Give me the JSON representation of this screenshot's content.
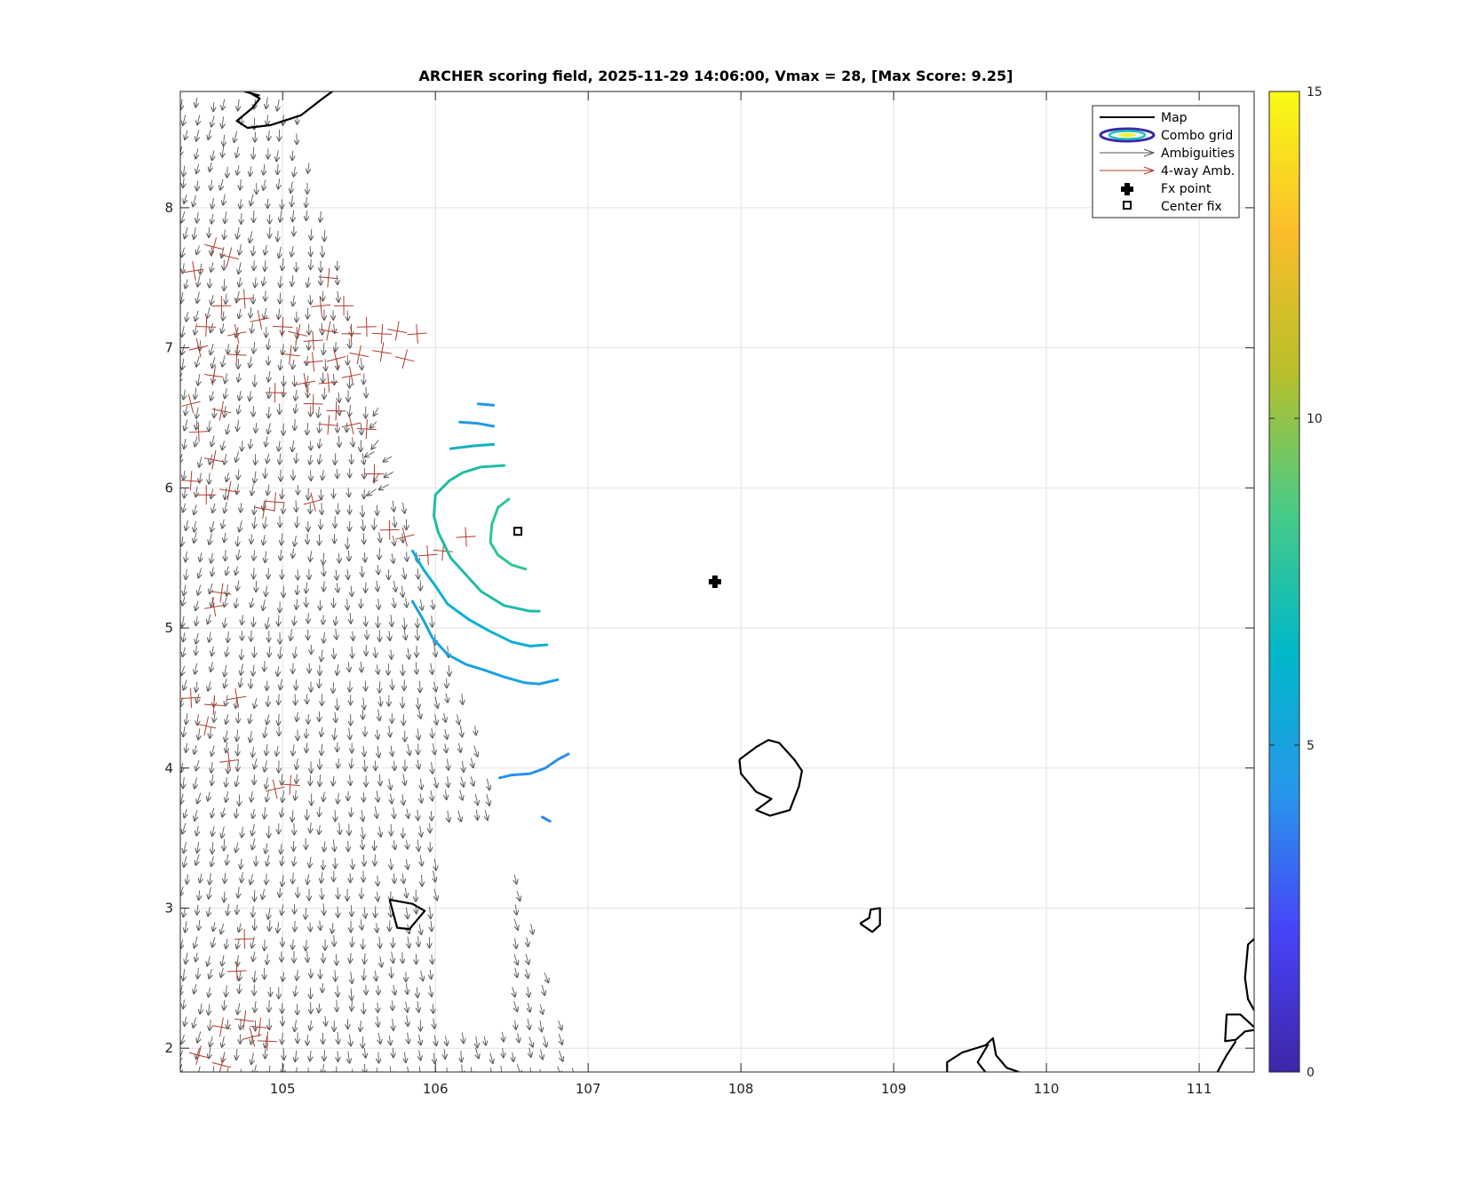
{
  "title": "ARCHER scoring field, 2025-11-29 14:06:00, Vmax = 28, [Max Score: 9.25]",
  "x_ticks": [
    "105",
    "106",
    "107",
    "108",
    "109",
    "110",
    "111"
  ],
  "y_ticks": [
    "2",
    "3",
    "4",
    "5",
    "6",
    "7",
    "8"
  ],
  "colorbar": {
    "ticks": [
      "0",
      "5",
      "10",
      "15"
    ],
    "min": 0,
    "max": 15,
    "colormap": [
      "#3e26a8",
      "#4743f8",
      "#2797eb",
      "#00b8c9",
      "#48cb86",
      "#b8c02a",
      "#fbbd2b",
      "#f9fb15"
    ]
  },
  "legend": {
    "items": [
      "Map",
      "Combo grid",
      "Ambiguities",
      "4-way Amb.",
      "Fx point",
      "Center fix"
    ]
  },
  "colors": {
    "map": "#000000",
    "ambiguities": "#555555",
    "fourway": "#b03a2e"
  },
  "chart_data": {
    "type": "map",
    "title": "ARCHER scoring field, 2025-11-29 14:06:00, Vmax = 28, [Max Score: 9.25]",
    "xlim": [
      104.33,
      111.36
    ],
    "ylim": [
      1.83,
      8.83
    ],
    "x_ticks": [
      105,
      106,
      107,
      108,
      109,
      110,
      111
    ],
    "y_ticks": [
      2,
      3,
      4,
      5,
      6,
      7,
      8
    ],
    "grid": true,
    "legend_position": "top-right",
    "fx_point": {
      "lon": 107.83,
      "lat": 5.33
    },
    "center_fix": {
      "lon": 106.54,
      "lat": 5.69
    },
    "contours": [
      {
        "level": 8.2,
        "color": "#2fc59a",
        "points": [
          [
            106.48,
            5.92
          ],
          [
            106.41,
            5.86
          ],
          [
            106.37,
            5.74
          ],
          [
            106.36,
            5.61
          ],
          [
            106.41,
            5.52
          ],
          [
            106.5,
            5.45
          ],
          [
            106.59,
            5.42
          ]
        ]
      },
      {
        "level": 7.8,
        "color": "#20bba4",
        "points": [
          [
            106.45,
            6.16
          ],
          [
            106.3,
            6.15
          ],
          [
            106.18,
            6.11
          ],
          [
            106.09,
            6.05
          ],
          [
            106.0,
            5.95
          ],
          [
            105.99,
            5.8
          ],
          [
            106.02,
            5.68
          ],
          [
            106.1,
            5.5
          ],
          [
            106.2,
            5.38
          ],
          [
            106.3,
            5.26
          ],
          [
            106.45,
            5.16
          ],
          [
            106.62,
            5.12
          ],
          [
            106.68,
            5.12
          ]
        ]
      },
      {
        "level": 7.2,
        "color": "#14afc5",
        "points": [
          [
            106.38,
            6.31
          ],
          [
            106.25,
            6.3
          ],
          [
            106.1,
            6.28
          ]
        ]
      },
      {
        "level": 6.8,
        "color": "#0eaed4",
        "points": [
          [
            105.85,
            5.55
          ],
          [
            105.92,
            5.42
          ],
          [
            106.0,
            5.3
          ],
          [
            106.08,
            5.17
          ],
          [
            106.22,
            5.06
          ],
          [
            106.35,
            4.98
          ],
          [
            106.5,
            4.9
          ],
          [
            106.62,
            4.87
          ],
          [
            106.73,
            4.88
          ]
        ]
      },
      {
        "level": 6.2,
        "color": "#1aa2e0",
        "points": [
          [
            105.85,
            5.19
          ],
          [
            105.92,
            5.06
          ],
          [
            105.98,
            4.93
          ],
          [
            106.08,
            4.81
          ],
          [
            106.2,
            4.74
          ],
          [
            106.32,
            4.7
          ],
          [
            106.45,
            4.65
          ],
          [
            106.58,
            4.61
          ],
          [
            106.68,
            4.6
          ],
          [
            106.8,
            4.63
          ]
        ]
      },
      {
        "level": 5.8,
        "color": "#1f98e6",
        "points": [
          [
            106.38,
            6.59
          ],
          [
            106.28,
            6.6
          ]
        ]
      },
      {
        "level": 5.6,
        "color": "#1f98e6",
        "points": [
          [
            106.38,
            6.44
          ],
          [
            106.28,
            6.46
          ],
          [
            106.16,
            6.47
          ]
        ]
      },
      {
        "level": 5.0,
        "color": "#2690e8",
        "points": [
          [
            106.42,
            3.93
          ],
          [
            106.5,
            3.95
          ],
          [
            106.62,
            3.96
          ],
          [
            106.72,
            4.0
          ],
          [
            106.8,
            4.06
          ],
          [
            106.87,
            4.1
          ]
        ]
      },
      {
        "level": 4.6,
        "color": "#2b87ea",
        "points": [
          [
            106.7,
            3.65
          ],
          [
            106.75,
            3.62
          ]
        ]
      }
    ],
    "map_features": [
      {
        "name": "coast-top",
        "points": [
          [
            104.77,
            8.83
          ],
          [
            104.85,
            8.78
          ],
          [
            104.8,
            8.71
          ],
          [
            104.7,
            8.62
          ],
          [
            104.77,
            8.57
          ],
          [
            104.92,
            8.59
          ],
          [
            105.12,
            8.66
          ],
          [
            105.25,
            8.77
          ],
          [
            105.35,
            8.85
          ]
        ]
      },
      {
        "name": "coast-top-2",
        "points": [
          [
            104.75,
            8.83
          ],
          [
            104.85,
            8.8
          ]
        ]
      },
      {
        "name": "island-105.8",
        "points": [
          [
            105.7,
            3.06
          ],
          [
            105.75,
            2.86
          ],
          [
            105.83,
            2.85
          ],
          [
            105.93,
            2.98
          ],
          [
            105.85,
            3.03
          ],
          [
            105.7,
            3.06
          ]
        ]
      },
      {
        "name": "island-108.2",
        "points": [
          [
            107.99,
            4.06
          ],
          [
            108.1,
            4.15
          ],
          [
            108.18,
            4.2
          ],
          [
            108.25,
            4.18
          ],
          [
            108.35,
            4.06
          ],
          [
            108.4,
            3.98
          ],
          [
            108.38,
            3.87
          ],
          [
            108.32,
            3.7
          ],
          [
            108.19,
            3.66
          ],
          [
            108.1,
            3.7
          ],
          [
            108.2,
            3.78
          ],
          [
            108.1,
            3.83
          ],
          [
            108.0,
            3.96
          ],
          [
            107.99,
            4.06
          ]
        ]
      },
      {
        "name": "island-108.9",
        "points": [
          [
            108.78,
            2.89
          ],
          [
            108.86,
            2.83
          ],
          [
            108.91,
            2.88
          ],
          [
            108.91,
            3.0
          ],
          [
            108.85,
            2.99
          ],
          [
            108.84,
            2.93
          ],
          [
            108.78,
            2.89
          ]
        ]
      },
      {
        "name": "coast-bottom",
        "points": [
          [
            109.35,
            1.83
          ],
          [
            109.35,
            1.9
          ],
          [
            109.45,
            1.97
          ],
          [
            109.6,
            2.02
          ],
          [
            109.65,
            2.07
          ],
          [
            109.67,
            1.95
          ],
          [
            109.74,
            1.86
          ],
          [
            109.82,
            1.83
          ]
        ]
      },
      {
        "name": "coast-bottom-2",
        "points": [
          [
            109.6,
            1.83
          ],
          [
            109.55,
            1.9
          ],
          [
            109.62,
            2.03
          ]
        ]
      },
      {
        "name": "coast-right",
        "points": [
          [
            111.36,
            2.78
          ],
          [
            111.32,
            2.74
          ],
          [
            111.3,
            2.5
          ],
          [
            111.32,
            2.35
          ],
          [
            111.36,
            2.27
          ]
        ]
      },
      {
        "name": "coast-right-2",
        "points": [
          [
            111.36,
            2.15
          ],
          [
            111.27,
            2.24
          ],
          [
            111.18,
            2.24
          ],
          [
            111.17,
            2.05
          ],
          [
            111.24,
            2.06
          ],
          [
            111.3,
            2.12
          ],
          [
            111.36,
            2.13
          ]
        ]
      },
      {
        "name": "coast-right-3",
        "points": [
          [
            111.12,
            1.83
          ],
          [
            111.18,
            1.95
          ],
          [
            111.24,
            2.05
          ]
        ]
      }
    ]
  }
}
